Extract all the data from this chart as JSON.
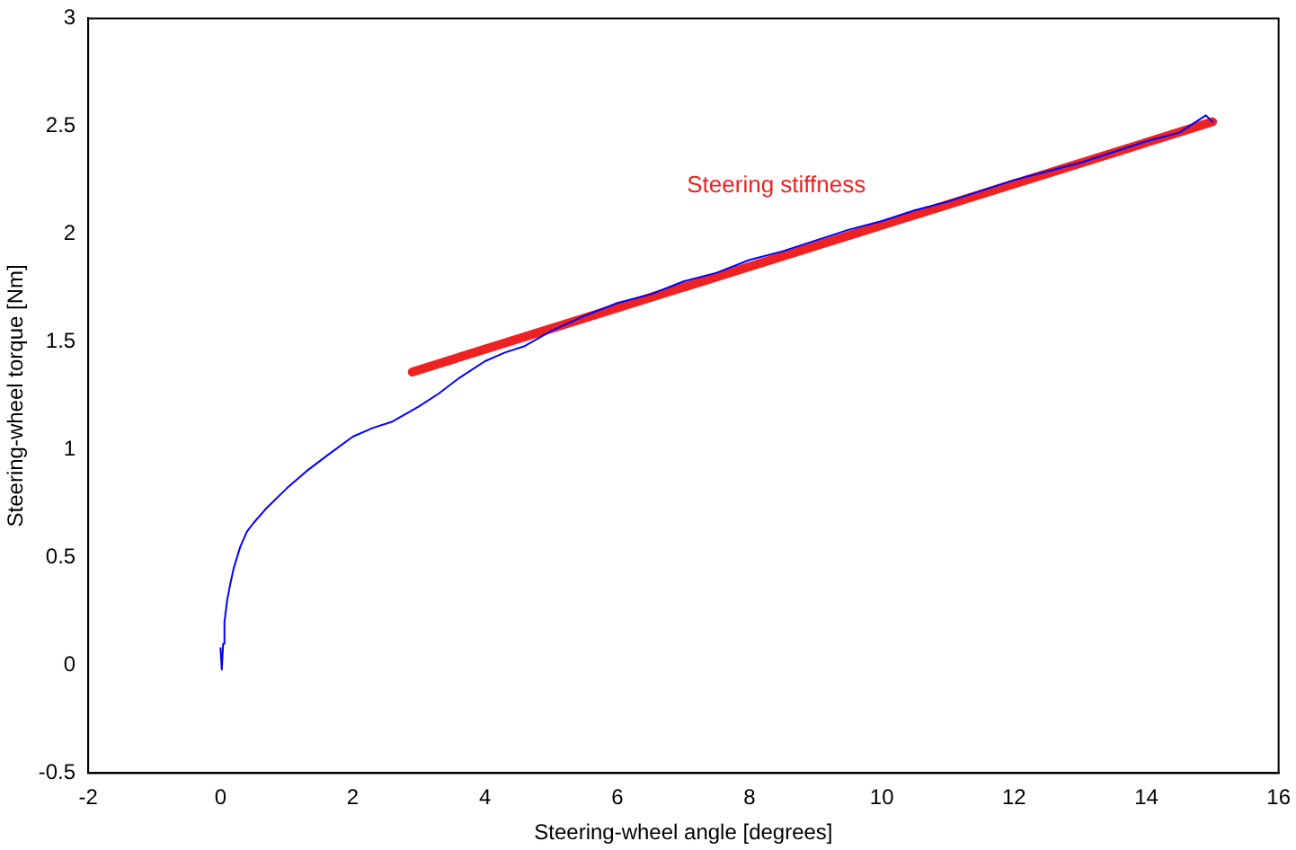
{
  "chart_data": {
    "type": "line",
    "xlabel": "Steering-wheel angle [degrees]",
    "ylabel": "Steering-wheel torque [Nm]",
    "xlim": [
      -2,
      16
    ],
    "xticks": [
      -2,
      0,
      2,
      4,
      6,
      8,
      10,
      12,
      14,
      16
    ],
    "ylim": [
      -0.5,
      3
    ],
    "yticks": [
      -0.5,
      0,
      0.5,
      1,
      1.5,
      2,
      2.5,
      3
    ],
    "grid": false,
    "legend": false,
    "marker": "none",
    "line_style": "solid",
    "series": [
      {
        "color": "#0000ff",
        "x": [
          0,
          0.02,
          0.04,
          0.06,
          0.1,
          0.15,
          0.2,
          0.3,
          0.4,
          0.5,
          0.7,
          1,
          1.3,
          1.6,
          2,
          2.3,
          2.6,
          3,
          3.3,
          3.6,
          4,
          4.3,
          4.6,
          5,
          5.5,
          6,
          6.5,
          7,
          7.5,
          8,
          8.5,
          9,
          9.5,
          10,
          10.5,
          11,
          11.5,
          12,
          12.5,
          13,
          13.5,
          14,
          14.5,
          14.9,
          15
        ],
        "values": [
          0.08,
          -0.02,
          0.1,
          0.2,
          0.3,
          0.38,
          0.45,
          0.55,
          0.62,
          0.66,
          0.73,
          0.82,
          0.9,
          0.97,
          1.06,
          1.1,
          1.13,
          1.2,
          1.26,
          1.33,
          1.41,
          1.45,
          1.48,
          1.55,
          1.62,
          1.68,
          1.72,
          1.78,
          1.82,
          1.88,
          1.92,
          1.97,
          2.02,
          2.06,
          2.11,
          2.15,
          2.2,
          2.25,
          2.29,
          2.33,
          2.38,
          2.43,
          2.47,
          2.55,
          2.52
        ]
      },
      {
        "color": "#ee2222",
        "x": [
          2.9,
          15
        ],
        "values": [
          1.36,
          2.52
        ]
      }
    ],
    "annotations": [
      "Steering stiffness"
    ]
  }
}
